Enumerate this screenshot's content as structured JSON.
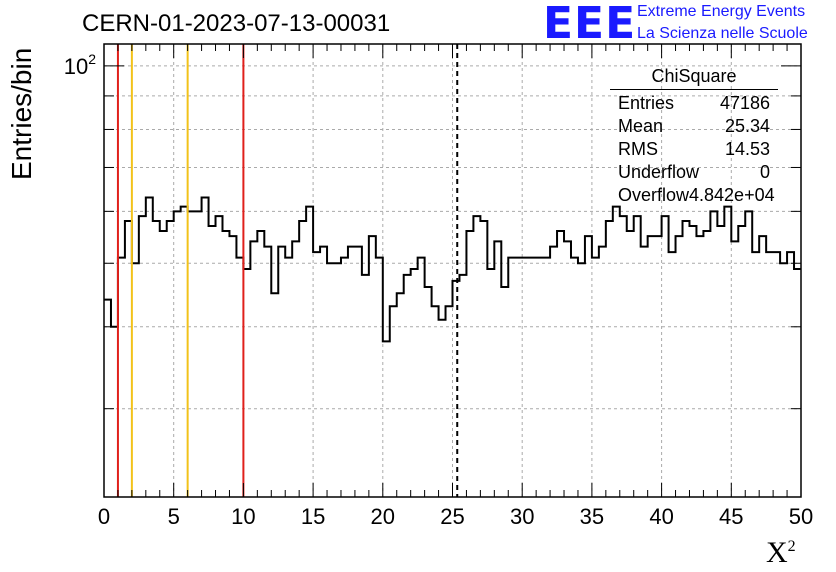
{
  "header": {
    "run_title": "CERN-01-2023-07-13-00031",
    "logo_text": "EEE",
    "org_line1": "Extreme Energy Events",
    "org_line2": "La Scienza nelle Scuole"
  },
  "stats_box": {
    "title": "ChiSquare",
    "rows": [
      {
        "label": "Entries",
        "value": "47186"
      },
      {
        "label": "Mean",
        "value": "25.34"
      },
      {
        "label": "RMS",
        "value": "14.53"
      },
      {
        "label": "Underflow",
        "value": "0"
      },
      {
        "label": "Overflow",
        "value": "4.842e+04"
      }
    ]
  },
  "chart_data": {
    "type": "histogram",
    "title": "CERN-01-2023-07-13-00031",
    "xlabel": "X",
    "xlabel_sup": "2",
    "ylabel": "Entries/bin",
    "xlim": [
      0,
      50
    ],
    "ylim": [
      22,
      108
    ],
    "yscale": "log",
    "y_tick_label": "10",
    "y_tick_label_sup": "2",
    "bin_width": 0.5,
    "x_ticks": [
      0,
      5,
      10,
      15,
      20,
      25,
      30,
      35,
      40,
      45,
      50
    ],
    "grid": true,
    "vertical_lines": [
      {
        "x": 1,
        "color": "#e0201b",
        "style": "solid"
      },
      {
        "x": 2,
        "color": "#f2c21a",
        "style": "solid"
      },
      {
        "x": 6,
        "color": "#f2c21a",
        "style": "solid"
      },
      {
        "x": 10,
        "color": "#e0201b",
        "style": "solid"
      },
      {
        "x": 25.34,
        "color": "#000000",
        "style": "dashed"
      }
    ],
    "values": [
      44,
      40,
      51,
      58,
      50,
      59,
      63,
      58,
      56,
      58,
      60,
      61,
      60,
      60,
      63,
      57,
      59,
      56,
      55,
      51,
      49,
      54,
      56,
      53,
      45,
      53,
      51,
      54,
      58,
      61,
      52,
      53,
      50,
      50,
      51,
      53,
      53,
      48,
      55,
      51,
      38,
      43,
      45,
      48,
      49,
      51,
      46,
      43,
      41,
      43,
      47,
      48,
      56,
      59,
      58,
      49,
      54,
      46,
      51,
      51,
      51,
      51,
      51,
      51,
      53,
      56,
      54,
      51,
      50,
      55,
      51,
      53,
      58,
      61,
      59,
      56,
      59,
      53,
      55,
      55,
      59,
      52,
      55,
      58,
      57,
      55,
      56,
      60,
      57,
      61,
      54,
      57,
      60,
      52,
      55,
      52,
      52,
      50,
      52,
      49
    ]
  }
}
